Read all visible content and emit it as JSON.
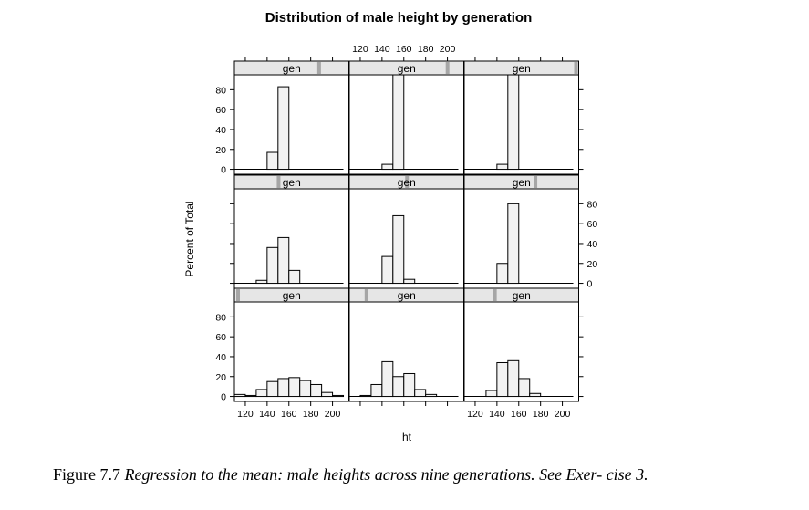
{
  "chart_data": {
    "type": "histogram-lattice",
    "title": "Distribution of male height by generation",
    "xlabel": "ht",
    "ylabel": "Percent of Total",
    "strip_label": "gen",
    "xlim": [
      110,
      215
    ],
    "ylim": [
      -5,
      95
    ],
    "x_ticks": [
      120,
      140,
      160,
      180,
      200
    ],
    "y_ticks": [
      0,
      20,
      40,
      60,
      80
    ],
    "bin_edges": [
      110,
      120,
      130,
      140,
      150,
      160,
      170,
      180,
      190,
      200,
      210
    ],
    "panels": [
      {
        "gen": 1,
        "values": [
          2,
          1,
          7,
          15,
          18,
          19,
          16,
          12,
          4,
          1
        ]
      },
      {
        "gen": 2,
        "values": [
          0,
          1,
          12,
          35,
          20,
          23,
          7,
          2,
          0,
          0
        ]
      },
      {
        "gen": 3,
        "values": [
          0,
          0,
          6,
          34,
          36,
          18,
          3,
          0,
          0,
          0
        ]
      },
      {
        "gen": 4,
        "values": [
          0,
          0,
          3,
          36,
          46,
          13,
          0,
          0,
          0,
          0
        ]
      },
      {
        "gen": 5,
        "values": [
          0,
          0,
          0,
          27,
          68,
          4,
          0,
          0,
          0,
          0
        ]
      },
      {
        "gen": 6,
        "values": [
          0,
          0,
          0,
          20,
          80,
          0,
          0,
          0,
          0,
          0
        ]
      },
      {
        "gen": 7,
        "values": [
          0,
          0,
          0,
          17,
          83,
          0,
          0,
          0,
          0,
          0
        ]
      },
      {
        "gen": 8,
        "values": [
          0,
          0,
          0,
          5,
          95,
          0,
          0,
          0,
          0,
          0
        ]
      },
      {
        "gen": 9,
        "values": [
          0,
          0,
          0,
          5,
          95,
          0,
          0,
          0,
          0,
          0
        ]
      }
    ],
    "colors": {
      "bar_fill": "#f2f2f2",
      "strip_fill": "#e6e6e6",
      "strip_marker": "#a6a6a6"
    }
  },
  "caption": {
    "lead": "Figure 7.7",
    "body": "Regression to the mean: male heights across nine generations. See Exer- cise 3."
  }
}
